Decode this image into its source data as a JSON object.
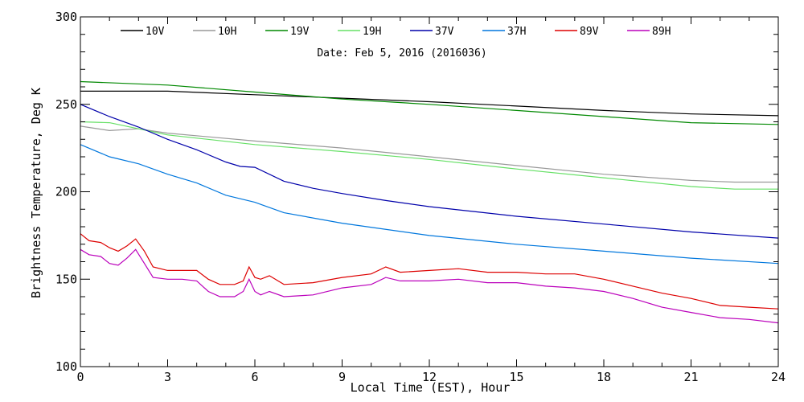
{
  "chart_data": {
    "type": "line",
    "subtitle": "Date: Feb  5, 2016 (2016036)",
    "xlabel": "Local Time (EST), Hour",
    "ylabel": "Brightness Temperature, Deg K",
    "xlim": [
      0,
      24
    ],
    "ylim": [
      100,
      300
    ],
    "x_ticks": [
      0,
      3,
      6,
      9,
      12,
      15,
      18,
      21,
      24
    ],
    "y_ticks": [
      100,
      150,
      200,
      250,
      300
    ],
    "grid": false,
    "legend_position": "top",
    "series": [
      {
        "name": "10V",
        "color": "#000000",
        "x": [
          0,
          3,
          6,
          9,
          12,
          15,
          18,
          21,
          24
        ],
        "y": [
          257.5,
          257.5,
          255.5,
          253.5,
          251.5,
          249,
          246.5,
          244.5,
          243.5
        ]
      },
      {
        "name": "10H",
        "color": "#999999",
        "x": [
          0,
          1,
          2,
          3,
          6,
          9,
          12,
          15,
          18,
          21,
          22.5,
          24
        ],
        "y": [
          237.5,
          235,
          236,
          233.5,
          229,
          225,
          220,
          215,
          210,
          206.5,
          205.5,
          205.5
        ]
      },
      {
        "name": "19V",
        "color": "#008800",
        "x": [
          0,
          3,
          6,
          9,
          12,
          15,
          18,
          21,
          24
        ],
        "y": [
          263,
          261,
          257,
          253,
          250,
          246.5,
          243,
          239.5,
          238.5
        ]
      },
      {
        "name": "19H",
        "color": "#66e066",
        "x": [
          0,
          1,
          2,
          3,
          6,
          9,
          12,
          15,
          18,
          21,
          22.5,
          24
        ],
        "y": [
          240,
          239.5,
          236,
          232.5,
          227,
          223,
          218.5,
          213,
          208,
          203,
          201.5,
          201.5
        ]
      },
      {
        "name": "37V",
        "color": "#0000aa",
        "x": [
          0,
          1,
          2,
          3,
          4,
          5,
          5.5,
          6,
          7,
          8,
          9,
          10.5,
          12,
          15,
          18,
          21,
          24
        ],
        "y": [
          250,
          243,
          237,
          230,
          224,
          217,
          214.5,
          214,
          206,
          202,
          199,
          195,
          191.5,
          186,
          181.5,
          177,
          173.5
        ]
      },
      {
        "name": "37H",
        "color": "#0077dd",
        "x": [
          0,
          1,
          2,
          3,
          4,
          5,
          5.5,
          6,
          7,
          9,
          12,
          15,
          18,
          21,
          24
        ],
        "y": [
          227,
          220,
          216,
          210,
          205,
          198,
          196,
          194,
          188,
          182,
          175,
          170,
          166,
          162,
          159
        ]
      },
      {
        "name": "89V",
        "color": "#dd0000",
        "x": [
          0,
          0.3,
          0.7,
          1,
          1.3,
          1.6,
          1.9,
          2.2,
          2.5,
          3,
          3.5,
          4,
          4.4,
          4.8,
          5.3,
          5.6,
          5.8,
          6,
          6.2,
          6.5,
          7,
          8,
          9,
          10,
          10.5,
          11,
          12,
          13,
          14,
          15,
          16,
          17,
          18,
          19,
          20,
          21,
          22,
          23,
          24
        ],
        "y": [
          176,
          172,
          171,
          168,
          166,
          169,
          173,
          166,
          157,
          155,
          155,
          155,
          150,
          147,
          147,
          149,
          157,
          151,
          150,
          152,
          147,
          148,
          151,
          153,
          157,
          154,
          155,
          156,
          154,
          154,
          153,
          153,
          150,
          146,
          142,
          139,
          135,
          134,
          133
        ]
      },
      {
        "name": "89H",
        "color": "#bb00bb",
        "x": [
          0,
          0.3,
          0.7,
          1,
          1.3,
          1.6,
          1.9,
          2.2,
          2.5,
          3,
          3.5,
          4,
          4.4,
          4.8,
          5.3,
          5.6,
          5.8,
          6,
          6.2,
          6.5,
          7,
          8,
          9,
          10,
          10.5,
          11,
          12,
          13,
          14,
          15,
          16,
          17,
          18,
          19,
          20,
          21,
          22,
          23,
          24
        ],
        "y": [
          167,
          164,
          163,
          159,
          158,
          162,
          167,
          159,
          151,
          150,
          150,
          149,
          143,
          140,
          140,
          143,
          150,
          143,
          141,
          143,
          140,
          141,
          145,
          147,
          151,
          149,
          149,
          150,
          148,
          148,
          146,
          145,
          143,
          139,
          134,
          131,
          128,
          127,
          125
        ]
      }
    ]
  }
}
